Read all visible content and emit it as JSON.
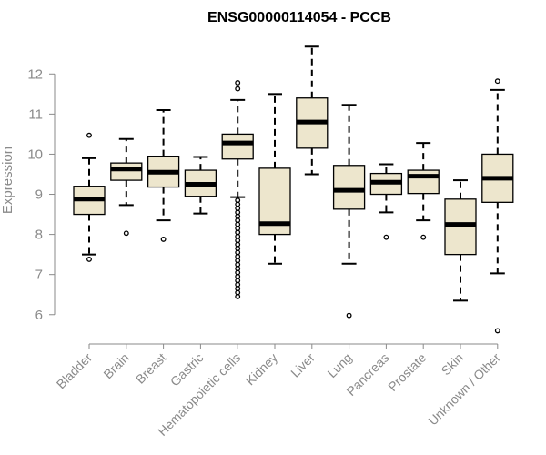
{
  "chart_data": {
    "type": "boxplot",
    "title": "ENSG00000114054 - PCCB",
    "xlabel": "",
    "ylabel": "Expression",
    "ylim": [
      5.45,
      13.05
    ],
    "yticks": [
      6,
      7,
      8,
      9,
      10,
      11,
      12
    ],
    "grid": false,
    "box_fill": "#ede6cd",
    "categories": [
      "Bladder",
      "Brain",
      "Breast",
      "Gastric",
      "Hematopoietic cells",
      "Kidney",
      "Liver",
      "Lung",
      "Pancreas",
      "Prostate",
      "Skin",
      "Unknown / Other"
    ],
    "boxes": [
      {
        "q1": 8.5,
        "median": 8.88,
        "q3": 9.2,
        "whisker_low": 7.5,
        "whisker_high": 9.9,
        "outliers": [
          10.47,
          7.38
        ]
      },
      {
        "q1": 9.35,
        "median": 9.63,
        "q3": 9.78,
        "whisker_low": 8.73,
        "whisker_high": 10.38,
        "outliers": [
          8.03
        ]
      },
      {
        "q1": 9.18,
        "median": 9.55,
        "q3": 9.95,
        "whisker_low": 8.35,
        "whisker_high": 11.1,
        "outliers": [
          7.88
        ]
      },
      {
        "q1": 8.95,
        "median": 9.25,
        "q3": 9.6,
        "whisker_low": 8.52,
        "whisker_high": 9.93,
        "outliers": []
      },
      {
        "q1": 9.88,
        "median": 10.28,
        "q3": 10.5,
        "whisker_low": 8.93,
        "whisker_high": 11.35,
        "outliers": [
          11.63,
          11.78,
          8.85,
          8.75,
          8.65,
          8.55,
          8.45,
          8.35,
          8.25,
          8.15,
          8.05,
          7.95,
          7.85,
          7.75,
          7.65,
          7.55,
          7.45,
          7.35,
          7.25,
          7.15,
          7.05,
          6.95,
          6.85,
          6.75,
          6.65,
          6.55,
          6.45
        ]
      },
      {
        "q1": 8.0,
        "median": 8.27,
        "q3": 9.65,
        "whisker_low": 7.27,
        "whisker_high": 11.5,
        "outliers": []
      },
      {
        "q1": 10.15,
        "median": 10.8,
        "q3": 11.4,
        "whisker_low": 9.5,
        "whisker_high": 12.68,
        "outliers": []
      },
      {
        "q1": 8.63,
        "median": 9.1,
        "q3": 9.72,
        "whisker_low": 7.27,
        "whisker_high": 11.23,
        "outliers": [
          5.98
        ]
      },
      {
        "q1": 9.0,
        "median": 9.3,
        "q3": 9.52,
        "whisker_low": 8.55,
        "whisker_high": 9.75,
        "outliers": [
          7.93
        ]
      },
      {
        "q1": 9.02,
        "median": 9.45,
        "q3": 9.6,
        "whisker_low": 8.35,
        "whisker_high": 10.28,
        "outliers": [
          7.93
        ]
      },
      {
        "q1": 7.5,
        "median": 8.25,
        "q3": 8.88,
        "whisker_low": 6.35,
        "whisker_high": 9.35,
        "outliers": []
      },
      {
        "q1": 8.8,
        "median": 9.4,
        "q3": 10.0,
        "whisker_low": 7.03,
        "whisker_high": 11.6,
        "outliers": [
          11.82,
          5.6
        ]
      }
    ]
  }
}
